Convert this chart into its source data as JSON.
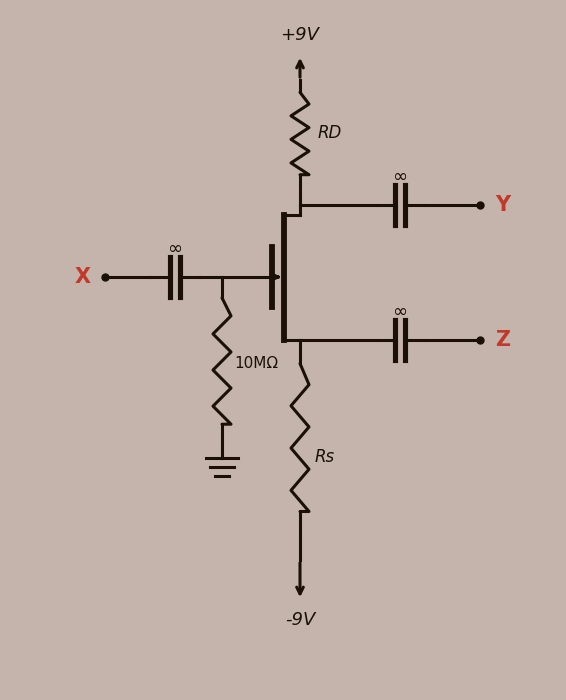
{
  "bg_color": "#c4b4ac",
  "line_color": "#1a1008",
  "red_color": "#c0392b",
  "lw": 2.2,
  "vdd": "+9V",
  "vss": "-9V",
  "rd_label": "RD",
  "rs_label": "Rs",
  "r1_label": "10MΩ",
  "x_label": "X",
  "y_label": "Y",
  "z_label": "Z"
}
